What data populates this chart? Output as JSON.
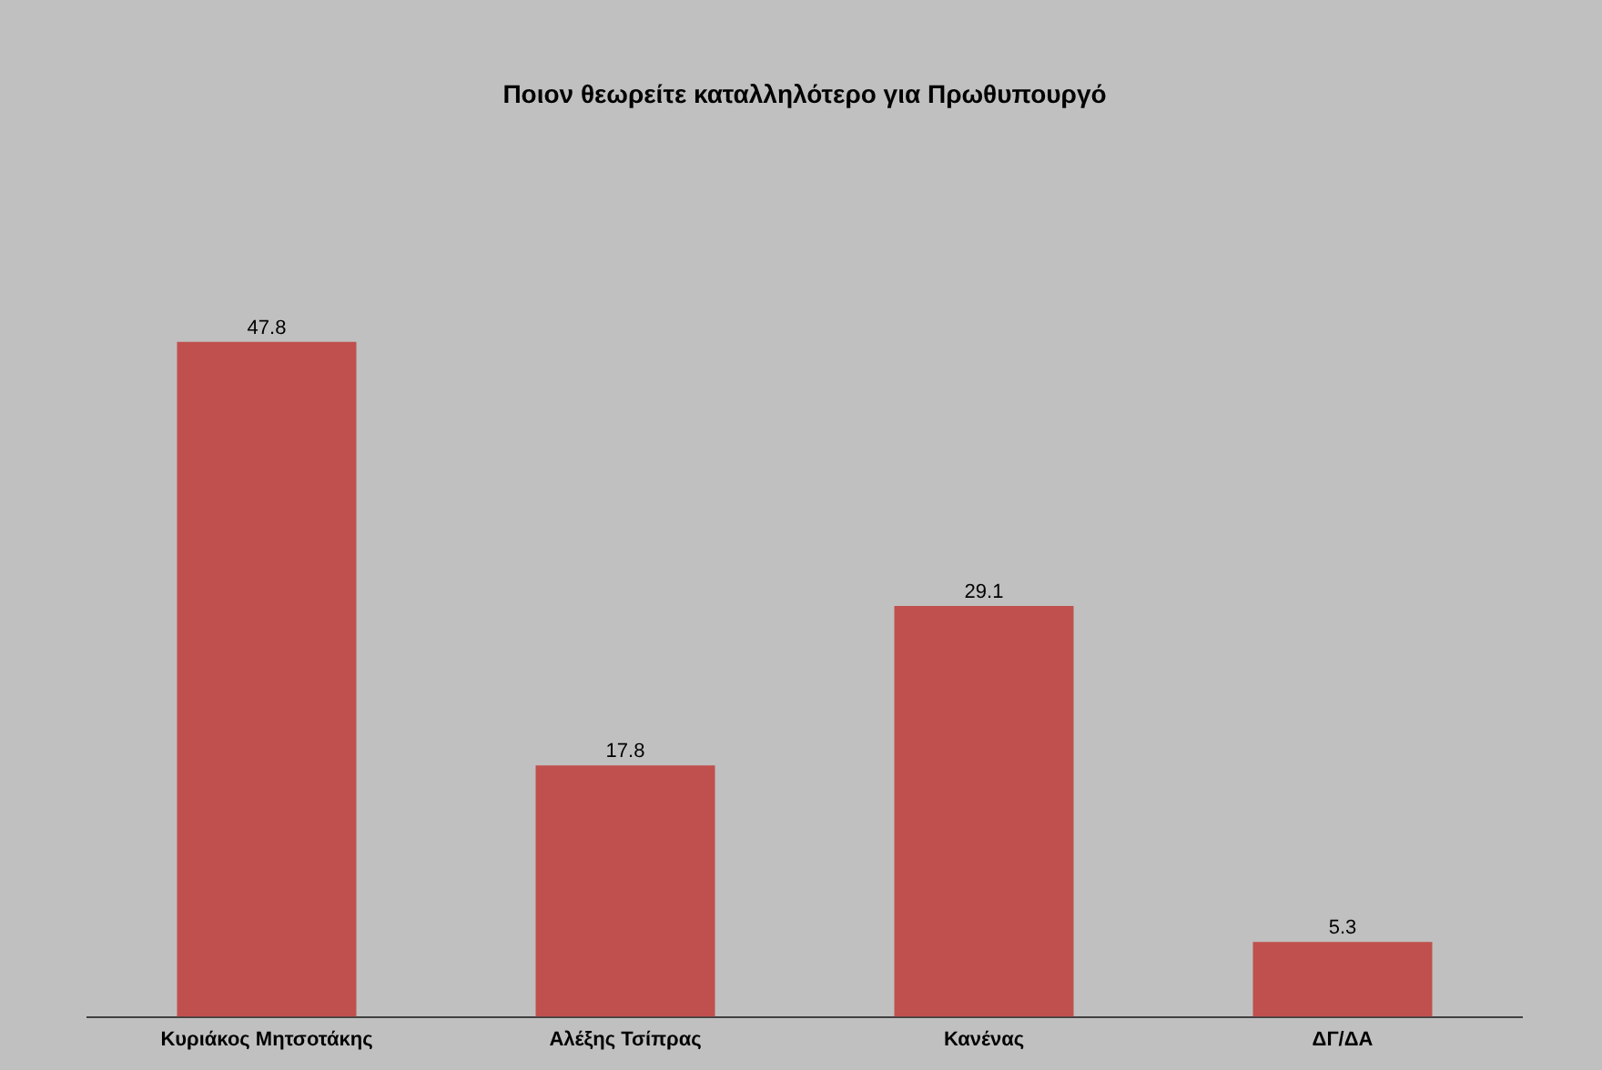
{
  "chart_data": {
    "type": "bar",
    "title": "Ποιον θεωρείτε καταλληλότερο για Πρωθυπουργό",
    "categories": [
      "Κυριάκος Μητσοτάκης",
      "Αλέξης Τσίπρας",
      "Κανένας",
      "ΔΓ/ΔΑ"
    ],
    "values": [
      47.8,
      17.8,
      29.1,
      5.3
    ],
    "color": "#c0504d",
    "data_labels": true,
    "grid": false,
    "legend": false
  }
}
